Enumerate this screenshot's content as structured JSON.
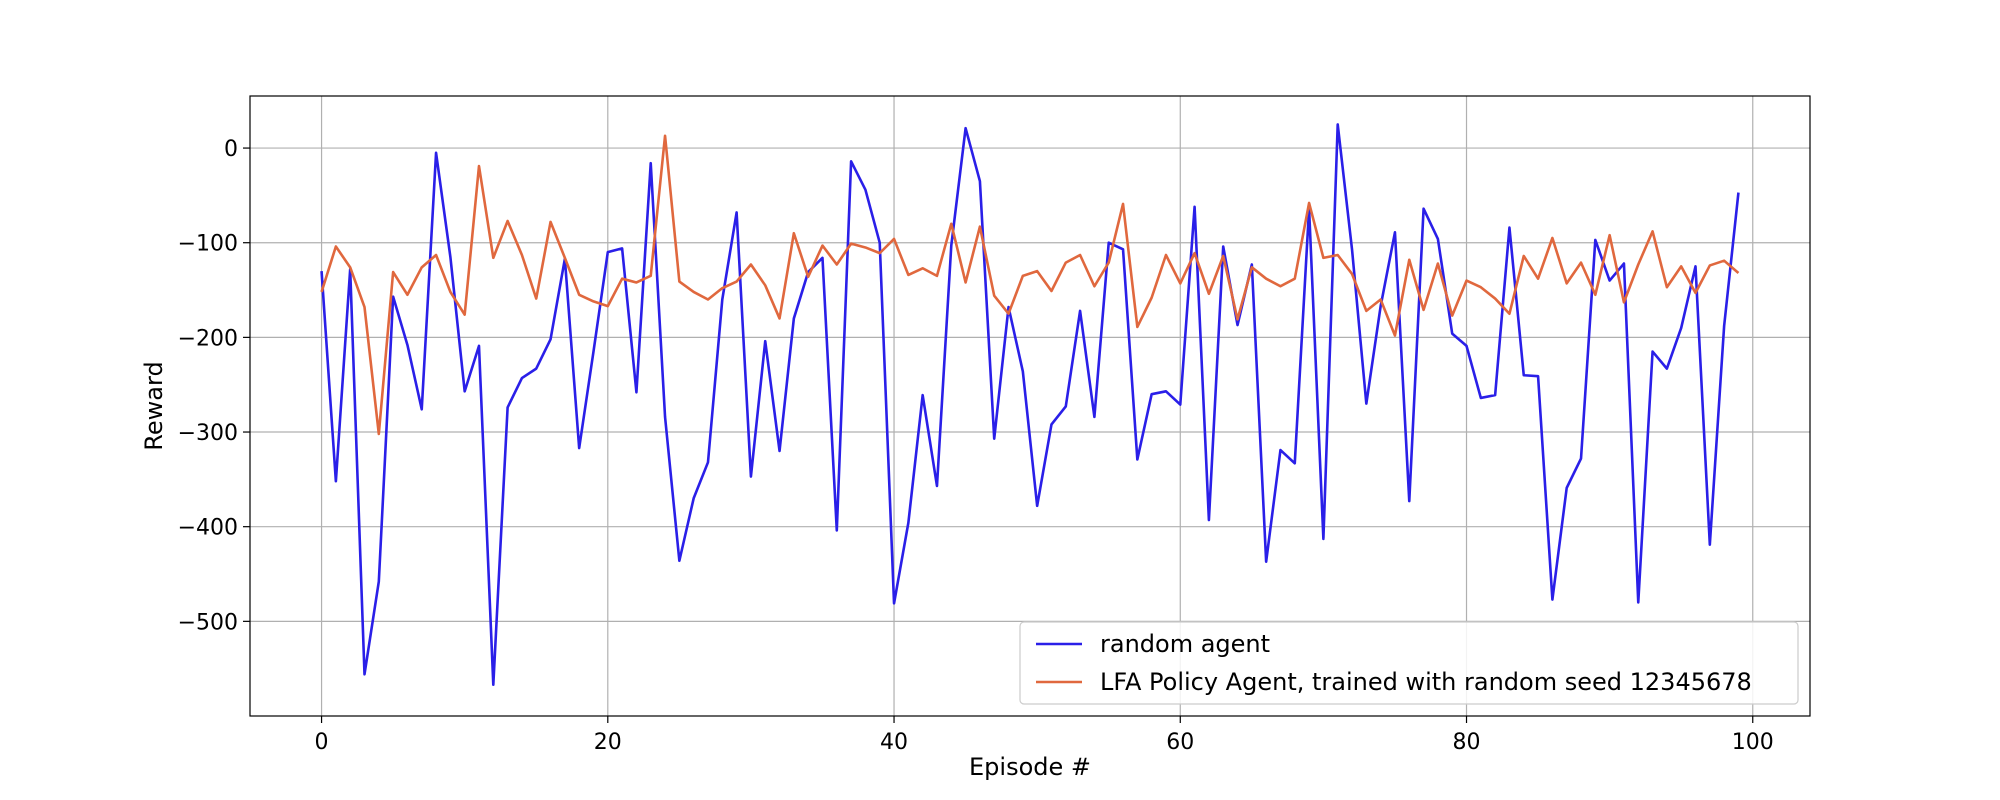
{
  "chart_data": {
    "type": "line",
    "title": "",
    "xlabel": "Episode #",
    "ylabel": "Reward",
    "xlim": [
      -5,
      104
    ],
    "ylim": [
      -600,
      55
    ],
    "xticks": [
      0,
      20,
      40,
      60,
      80,
      100
    ],
    "yticks": [
      0,
      -100,
      -200,
      -300,
      -400,
      -500
    ],
    "xtick_labels": [
      "0",
      "20",
      "40",
      "60",
      "80",
      "100"
    ],
    "ytick_labels": [
      "0",
      "−100",
      "−200",
      "−300",
      "−400",
      "−500"
    ],
    "grid": true,
    "legend_position": "lower-right",
    "series": [
      {
        "name": "random agent",
        "color": "#2a1fe8",
        "values": [
          -130,
          -352,
          -128,
          -556,
          -458,
          -157,
          -208,
          -276,
          -5,
          -115,
          -257,
          -209,
          -567,
          -274,
          -243,
          -233,
          -202,
          -117,
          -317,
          -215,
          -110,
          -106,
          -258,
          -16,
          -284,
          -436,
          -370,
          -332,
          -160,
          -68,
          -347,
          -204,
          -320,
          -180,
          -131,
          -116,
          -404,
          -14,
          -44,
          -100,
          -481,
          -396,
          -261,
          -357,
          -103,
          21,
          -35,
          -307,
          -168,
          -236,
          -378,
          -292,
          -273,
          -172,
          -284,
          -100,
          -107,
          -329,
          -260,
          -257,
          -271,
          -62,
          -393,
          -104,
          -187,
          -123,
          -437,
          -319,
          -333,
          -64,
          -413,
          25,
          -107,
          -270,
          -167,
          -89,
          -373,
          -64,
          -96,
          -196,
          -209,
          -264,
          -261,
          -84,
          -240,
          -241,
          -477,
          -359,
          -328,
          -97,
          -140,
          -122,
          -480,
          -215,
          -233,
          -190,
          -125,
          -419,
          -188,
          -47
        ]
      },
      {
        "name": "LFA Policy Agent, trained with random seed 12345678",
        "color": "#e0683e",
        "values": [
          -152,
          -104,
          -126,
          -168,
          -302,
          -131,
          -155,
          -126,
          -113,
          -152,
          -176,
          -19,
          -116,
          -77,
          -113,
          -159,
          -78,
          -116,
          -155,
          -162,
          -167,
          -138,
          -142,
          -135,
          13,
          -141,
          -152,
          -160,
          -148,
          -141,
          -123,
          -145,
          -180,
          -90,
          -136,
          -103,
          -123,
          -101,
          -105,
          -111,
          -96,
          -134,
          -127,
          -135,
          -80,
          -142,
          -83,
          -156,
          -175,
          -135,
          -130,
          -151,
          -121,
          -113,
          -146,
          -121,
          -59,
          -189,
          -158,
          -113,
          -143,
          -111,
          -154,
          -114,
          -181,
          -126,
          -138,
          -146,
          -138,
          -58,
          -116,
          -113,
          -133,
          -172,
          -160,
          -198,
          -118,
          -171,
          -122,
          -177,
          -140,
          -147,
          -159,
          -175,
          -114,
          -138,
          -95,
          -143,
          -121,
          -155,
          -92,
          -163,
          -123,
          -88,
          -147,
          -125,
          -153,
          -124,
          -119,
          -132
        ]
      }
    ]
  }
}
